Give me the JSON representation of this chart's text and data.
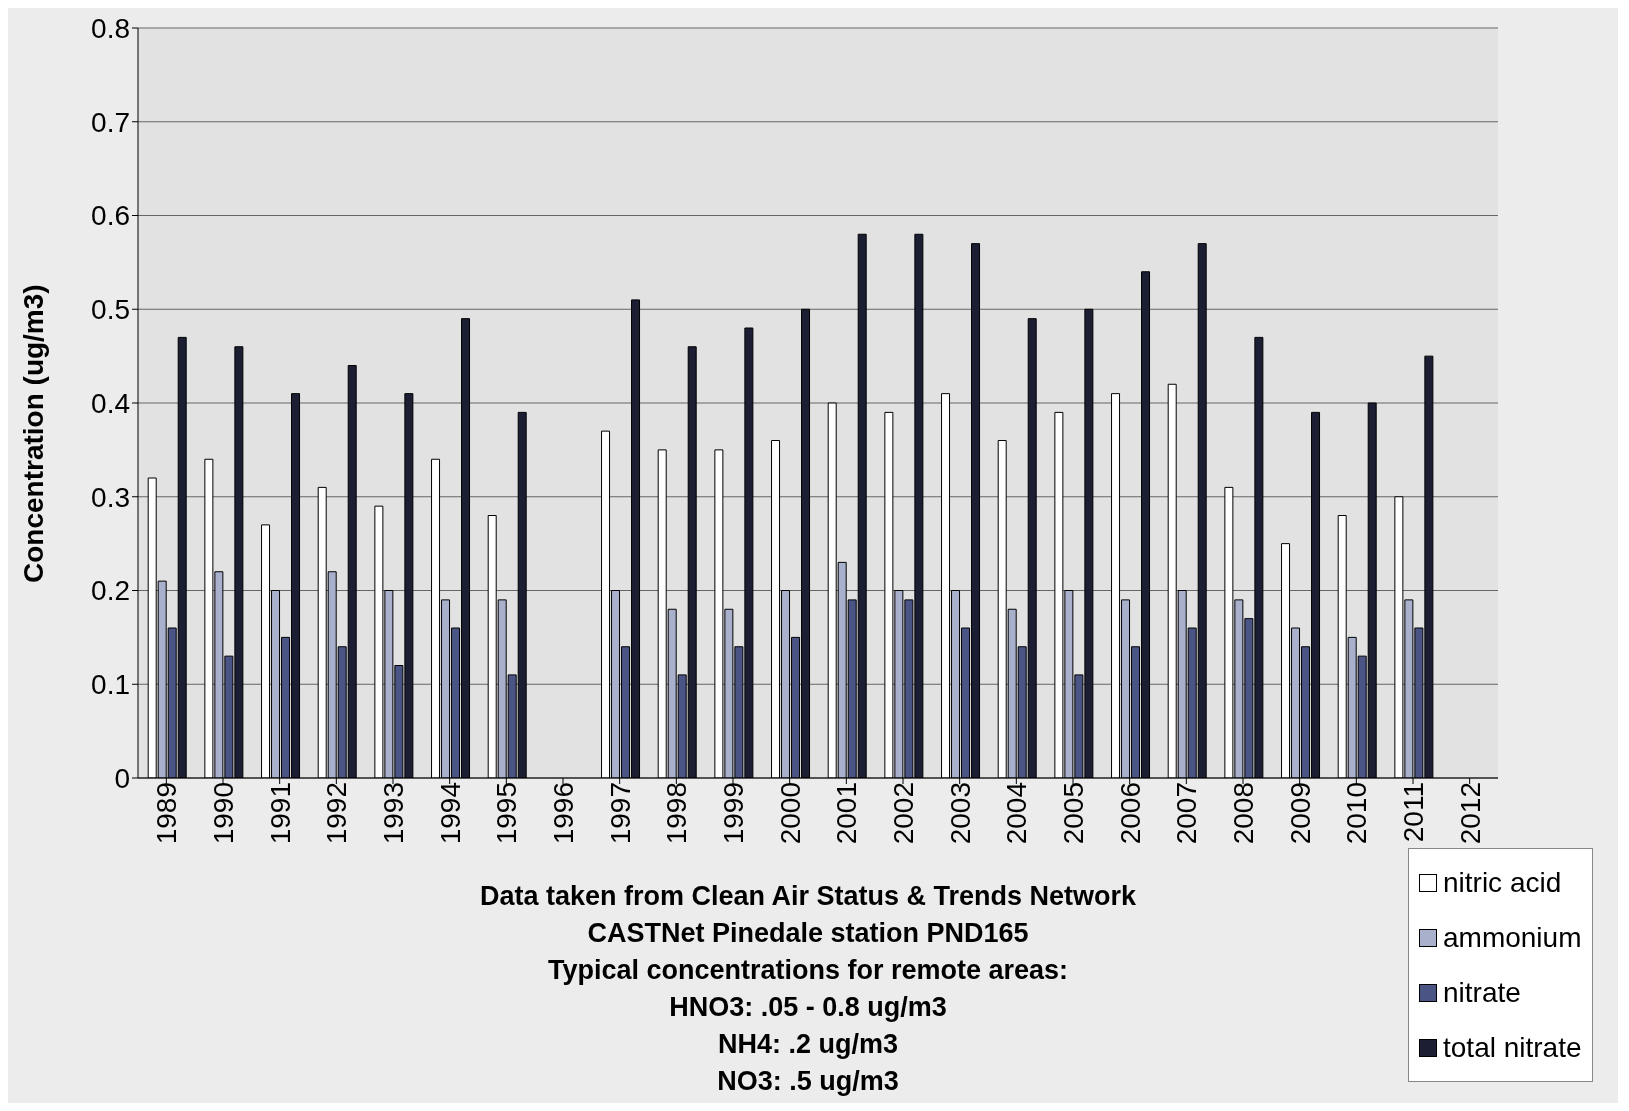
{
  "chart_data": {
    "type": "bar",
    "ylabel": "Concentration (ug/m3)",
    "categories": [
      "1989",
      "1990",
      "1991",
      "1992",
      "1993",
      "1994",
      "1995",
      "1996",
      "1997",
      "1998",
      "1999",
      "2000",
      "2001",
      "2002",
      "2003",
      "2004",
      "2005",
      "2006",
      "2007",
      "2008",
      "2009",
      "2010",
      "2011",
      "2012"
    ],
    "series": [
      {
        "name": "nitric acid",
        "color": "#ffffff",
        "values": [
          0.32,
          0.34,
          0.27,
          0.31,
          0.29,
          0.34,
          0.28,
          null,
          0.37,
          0.35,
          0.35,
          0.36,
          0.4,
          0.39,
          0.41,
          0.36,
          0.39,
          0.41,
          0.42,
          0.31,
          0.25,
          0.28,
          0.3,
          null
        ]
      },
      {
        "name": "ammonium",
        "color": "#a9b0cc",
        "values": [
          0.21,
          0.22,
          0.2,
          0.22,
          0.2,
          0.19,
          0.19,
          null,
          0.2,
          0.18,
          0.18,
          0.2,
          0.23,
          0.2,
          0.2,
          0.18,
          0.2,
          0.19,
          0.2,
          0.19,
          0.16,
          0.15,
          0.19,
          null
        ]
      },
      {
        "name": "nitrate",
        "color": "#4a5485",
        "values": [
          0.16,
          0.13,
          0.15,
          0.14,
          0.12,
          0.16,
          0.11,
          null,
          0.14,
          0.11,
          0.14,
          0.15,
          0.19,
          0.19,
          0.16,
          0.14,
          0.11,
          0.14,
          0.16,
          0.17,
          0.14,
          0.13,
          0.16,
          null
        ]
      },
      {
        "name": "total nitrate",
        "color": "#1c1f33",
        "values": [
          0.47,
          0.46,
          0.41,
          0.44,
          0.41,
          0.49,
          0.39,
          null,
          0.51,
          0.46,
          0.48,
          0.5,
          0.58,
          0.58,
          0.57,
          0.49,
          0.5,
          0.54,
          0.57,
          0.47,
          0.39,
          0.4,
          0.45,
          null
        ]
      }
    ],
    "ylim": [
      0,
      0.8
    ],
    "yticks": [
      0,
      0.1,
      0.2,
      0.3,
      0.4,
      0.5,
      0.6,
      0.7,
      0.8
    ],
    "grid": "y",
    "legend": "bottom right",
    "annotations": [
      "Data taken from Clean Air Status & Trends Network",
      "CASTNet Pinedale station PND165",
      "Typical concentrations for remote areas:",
      "HNO3:  .05 - 0.8 ug/m3",
      "NH4:  .2 ug/m3",
      "NO3:  .5 ug/m3"
    ]
  }
}
